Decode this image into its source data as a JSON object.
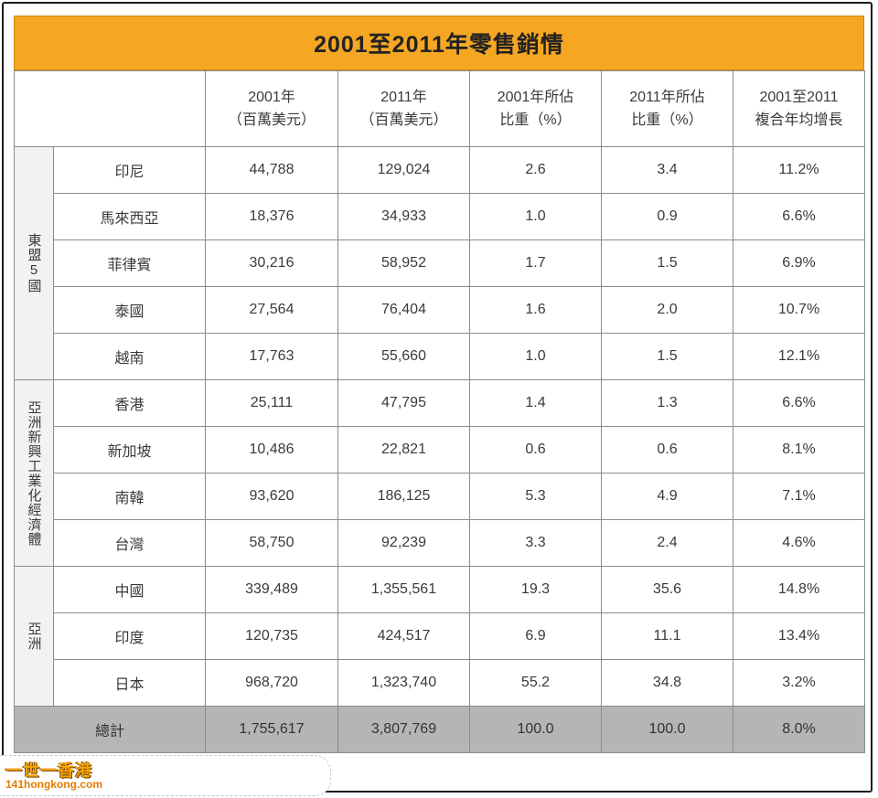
{
  "title": "2001至2011年零售銷情",
  "header": {
    "col1": [
      "2001年",
      "（百萬美元）"
    ],
    "col2": [
      "2011年",
      "（百萬美元）"
    ],
    "col3": [
      "2001年所佔",
      "比重（%）"
    ],
    "col4": [
      "2011年所佔",
      "比重（%）"
    ],
    "col5": [
      "2001至2011",
      "複合年均增長"
    ]
  },
  "groups": [
    {
      "label": "東盟5國",
      "rows": [
        {
          "name": "印尼",
          "v2001": "44,788",
          "v2011": "129,024",
          "s2001": "2.6",
          "s2011": "3.4",
          "cagr": "11.2%"
        },
        {
          "name": "馬來西亞",
          "v2001": "18,376",
          "v2011": "34,933",
          "s2001": "1.0",
          "s2011": "0.9",
          "cagr": "6.6%"
        },
        {
          "name": "菲律賓",
          "v2001": "30,216",
          "v2011": "58,952",
          "s2001": "1.7",
          "s2011": "1.5",
          "cagr": "6.9%"
        },
        {
          "name": "泰國",
          "v2001": "27,564",
          "v2011": "76,404",
          "s2001": "1.6",
          "s2011": "2.0",
          "cagr": "10.7%"
        },
        {
          "name": "越南",
          "v2001": "17,763",
          "v2011": "55,660",
          "s2001": "1.0",
          "s2011": "1.5",
          "cagr": "12.1%"
        }
      ]
    },
    {
      "label": "亞洲新興工業化經濟體",
      "rows": [
        {
          "name": "香港",
          "v2001": "25,111",
          "v2011": "47,795",
          "s2001": "1.4",
          "s2011": "1.3",
          "cagr": "6.6%"
        },
        {
          "name": "新加坡",
          "v2001": "10,486",
          "v2011": "22,821",
          "s2001": "0.6",
          "s2011": "0.6",
          "cagr": "8.1%"
        },
        {
          "name": "南韓",
          "v2001": "93,620",
          "v2011": "186,125",
          "s2001": "5.3",
          "s2011": "4.9",
          "cagr": "7.1%"
        },
        {
          "name": "台灣",
          "v2001": "58,750",
          "v2011": "92,239",
          "s2001": "3.3",
          "s2011": "2.4",
          "cagr": "4.6%"
        }
      ]
    },
    {
      "label": "亞洲",
      "rows": [
        {
          "name": "中國",
          "v2001": "339,489",
          "v2011": "1,355,561",
          "s2001": "19.3",
          "s2011": "35.6",
          "cagr": "14.8%"
        },
        {
          "name": "印度",
          "v2001": "120,735",
          "v2011": "424,517",
          "s2001": "6.9",
          "s2011": "11.1",
          "cagr": "13.4%"
        },
        {
          "name": "日本",
          "v2001": "968,720",
          "v2011": "1,323,740",
          "s2001": "55.2",
          "s2011": "34.8",
          "cagr": "3.2%"
        }
      ]
    }
  ],
  "total": {
    "label": "總計",
    "v2001": "1,755,617",
    "v2011": "3,807,769",
    "s2001": "100.0",
    "s2011": "100.0",
    "cagr": "8.0%"
  },
  "watermark": {
    "logo": "一世一香港",
    "url": "141hongkong.com"
  }
}
